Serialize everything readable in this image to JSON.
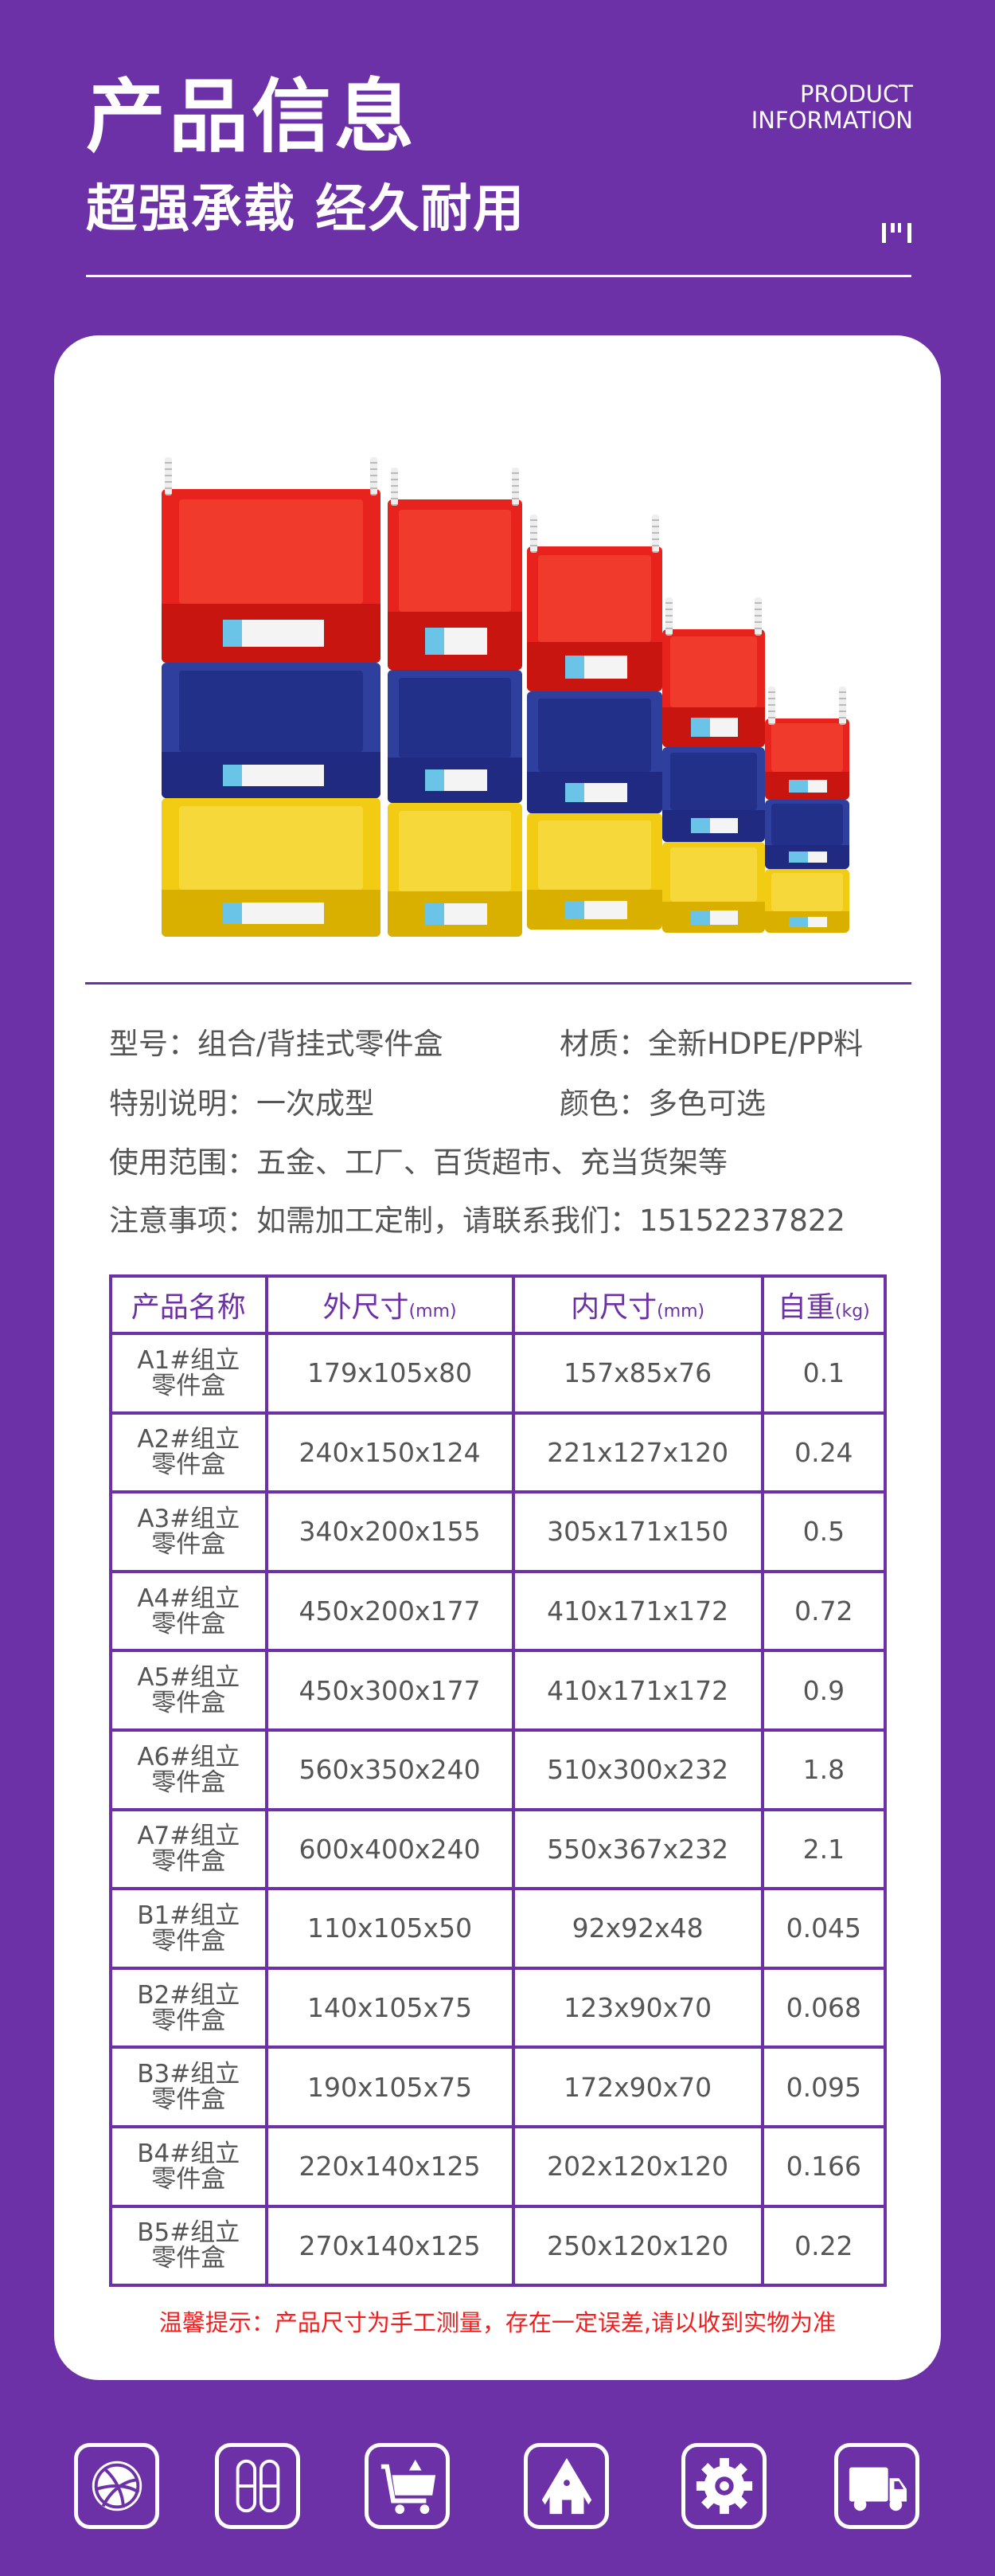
{
  "header": {
    "title": "产品信息",
    "subtitle": "超强承载 经久耐用",
    "english_line1": "PRODUCT",
    "english_line2": "INFORMATION"
  },
  "colors": {
    "brand_purple": "#6d31a7",
    "notice_red": "#f21d1d",
    "text_gray": "#555555"
  },
  "product_image": {
    "description_alt": "",
    "bin_colors": [
      "#e8231e",
      "#2f3f9e",
      "#f2cc12"
    ]
  },
  "specs": [
    {
      "label": "型号：",
      "value": "组合/背挂式零件盒"
    },
    {
      "label": "材质：",
      "value": "全新HDPE/PP料"
    },
    {
      "label": "特别说明：",
      "value": "一次成型"
    },
    {
      "label": "颜色：",
      "value": "多色可选"
    },
    {
      "label": "使用范围：",
      "value": "五金、工厂、百货超市、充当货架等"
    },
    {
      "label": "注意事项：",
      "value": "如需加工定制，请联系我们：15152237822"
    }
  ],
  "table": {
    "headers": [
      {
        "main": "产品名称",
        "unit": ""
      },
      {
        "main": "外尺寸",
        "unit": "(mm)"
      },
      {
        "main": "内尺寸",
        "unit": "(mm)"
      },
      {
        "main": "自重",
        "unit": "(kg)"
      }
    ],
    "rows": [
      {
        "code": "A1#组立",
        "name": "零件盒",
        "outer": "179x105x80",
        "inner": "157x85x76",
        "weight": "0.1"
      },
      {
        "code": "A2#组立",
        "name": "零件盒",
        "outer": "240x150x124",
        "inner": "221x127x120",
        "weight": "0.24"
      },
      {
        "code": "A3#组立",
        "name": "零件盒",
        "outer": "340x200x155",
        "inner": "305x171x150",
        "weight": "0.5"
      },
      {
        "code": "A4#组立",
        "name": "零件盒",
        "outer": "450x200x177",
        "inner": "410x171x172",
        "weight": "0.72"
      },
      {
        "code": "A5#组立",
        "name": "零件盒",
        "outer": "450x300x177",
        "inner": "410x171x172",
        "weight": "0.9"
      },
      {
        "code": "A6#组立",
        "name": "零件盒",
        "outer": "560x350x240",
        "inner": "510x300x232",
        "weight": "1.8"
      },
      {
        "code": "A7#组立",
        "name": "零件盒",
        "outer": "600x400x240",
        "inner": "550x367x232",
        "weight": "2.1"
      },
      {
        "code": "B1#组立",
        "name": "零件盒",
        "outer": "110x105x50",
        "inner": "92x92x48",
        "weight": "0.045"
      },
      {
        "code": "B2#组立",
        "name": "零件盒",
        "outer": "140x105x75",
        "inner": "123x90x70",
        "weight": "0.068"
      },
      {
        "code": "B3#组立",
        "name": "零件盒",
        "outer": "190x105x75",
        "inner": "172x90x70",
        "weight": "0.095"
      },
      {
        "code": "B4#组立",
        "name": "零件盒",
        "outer": "220x140x125",
        "inner": "202x120x120",
        "weight": "0.166"
      },
      {
        "code": "B5#组立",
        "name": "零件盒",
        "outer": "270x140x125",
        "inner": "250x120x120",
        "weight": "0.22"
      }
    ]
  },
  "notice": "温馨提示：产品尺寸为手工测量，存在一定误差,请以收到实物为准",
  "footer_icons": [
    "dribbble-ball-icon",
    "capsule-icon",
    "shopping-cart-icon",
    "home-icon",
    "gear-icon",
    "truck-icon"
  ]
}
